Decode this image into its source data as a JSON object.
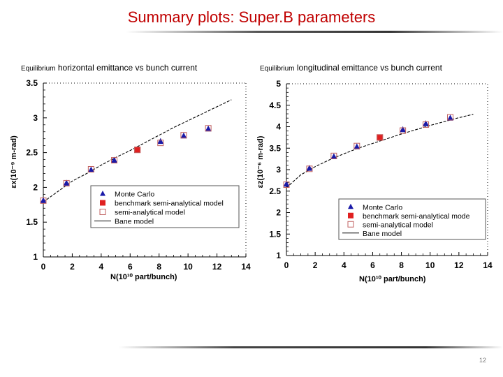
{
  "slide": {
    "title": "Summary plots: Super.B parameters",
    "page_number": "12"
  },
  "chart_data": [
    {
      "type": "line",
      "caption_small": "Equilibrium",
      "caption_main": "horizontal emittance vs bunch current",
      "xlabel": "N(10¹⁰ part/bunch)",
      "ylabel": "εx(10⁻⁹ m-rad)",
      "xlim": [
        0,
        14
      ],
      "ylim": [
        1,
        3.5
      ],
      "xticks": [
        0,
        2,
        4,
        6,
        8,
        10,
        12,
        14
      ],
      "yticks": [
        1,
        1.5,
        2,
        2.5,
        3,
        3.5
      ],
      "ytick_labels": [
        "1",
        "1.5",
        "2",
        "2.5",
        "3",
        "3.5"
      ],
      "legend_placement": "lower-right",
      "series": [
        {
          "name": "Monte Carlo",
          "marker": "triangle",
          "color": "#1a1aa8",
          "x": [
            0,
            1.6,
            3.3,
            4.9,
            8.1,
            9.7,
            11.4
          ],
          "y": [
            1.81,
            2.06,
            2.25,
            2.39,
            2.66,
            2.74,
            2.84
          ]
        },
        {
          "name": "benchmark semi-analytical model",
          "marker": "filled-square",
          "color": "#e02020",
          "x": [
            6.5
          ],
          "y": [
            2.54
          ]
        },
        {
          "name": "semi-analytical model",
          "marker": "open-square",
          "color": "#c06060",
          "x": [
            0,
            1.6,
            3.3,
            4.9,
            6.5,
            8.1,
            9.7,
            11.4
          ],
          "y": [
            1.81,
            2.06,
            2.26,
            2.39,
            2.54,
            2.64,
            2.75,
            2.85
          ]
        },
        {
          "name": "Bane model",
          "marker": "dash-line",
          "color": "#000000",
          "x": [
            0,
            1,
            2,
            3,
            4,
            5,
            6,
            7,
            8,
            9,
            10,
            11,
            12,
            13
          ],
          "y": [
            1.79,
            1.94,
            2.09,
            2.2,
            2.32,
            2.43,
            2.53,
            2.64,
            2.75,
            2.86,
            2.96,
            3.06,
            3.16,
            3.26
          ]
        }
      ]
    },
    {
      "type": "line",
      "caption_small": "Equilibrium",
      "caption_main": "longitudinal emittance vs bunch current",
      "xlabel": "N(10¹⁰ part/bunch)",
      "ylabel": "εz(10⁻⁶ m-rad)",
      "xlim": [
        0,
        14
      ],
      "ylim": [
        1,
        5
      ],
      "xticks": [
        0,
        2,
        4,
        6,
        8,
        10,
        12,
        14
      ],
      "yticks": [
        1,
        1.5,
        2,
        2.5,
        3,
        3.5,
        4,
        4.5,
        5
      ],
      "ytick_labels": [
        "1",
        "1.5",
        "2",
        "2.5",
        "3",
        "3.5",
        "4",
        "4.5",
        "5"
      ],
      "legend_placement": "lower-right",
      "series": [
        {
          "name": "Monte Carlo",
          "marker": "triangle",
          "color": "#1a1aa8",
          "x": [
            0,
            1.6,
            3.3,
            4.9,
            8.1,
            9.7,
            11.4
          ],
          "y": [
            2.66,
            3.03,
            3.3,
            3.53,
            3.93,
            4.07,
            4.2
          ]
        },
        {
          "name": "benchmark semi-analytical mode",
          "marker": "filled-square",
          "color": "#e02020",
          "x": [
            6.5
          ],
          "y": [
            3.75
          ]
        },
        {
          "name": "semi-analytical model",
          "marker": "open-square",
          "color": "#c06060",
          "x": [
            0,
            1.6,
            3.3,
            4.9,
            6.5,
            8.1,
            9.7,
            11.4
          ],
          "y": [
            2.65,
            3.02,
            3.32,
            3.55,
            3.75,
            3.91,
            4.05,
            4.22
          ]
        },
        {
          "name": "Bane model",
          "marker": "dash-line",
          "color": "#000000",
          "x": [
            0,
            1,
            2,
            3,
            4,
            5,
            6,
            7,
            8,
            9,
            10,
            11,
            12,
            13
          ],
          "y": [
            2.58,
            2.88,
            3.07,
            3.23,
            3.37,
            3.5,
            3.61,
            3.72,
            3.83,
            3.93,
            4.03,
            4.12,
            4.21,
            4.29
          ]
        }
      ]
    }
  ]
}
